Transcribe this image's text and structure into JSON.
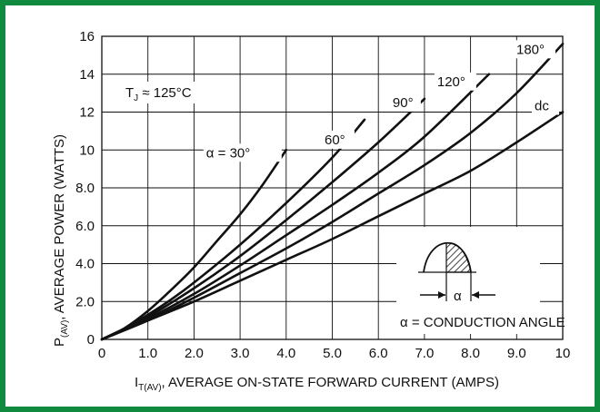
{
  "chart_data": {
    "type": "line",
    "xlabel_main": "I",
    "xlabel_sub": "T(AV)",
    "xlabel_rest": ", AVERAGE ON-STATE FORWARD CURRENT (AMPS)",
    "ylabel_main": "P",
    "ylabel_sub": "(AV)",
    "ylabel_rest": ", AVERAGE POWER (WATTS)",
    "xlim": [
      0,
      10
    ],
    "ylim": [
      0,
      16
    ],
    "x_ticks": [
      "0",
      "1.0",
      "2.0",
      "3.0",
      "4.0",
      "5.0",
      "6.0",
      "7.0",
      "8.0",
      "9.0",
      "10"
    ],
    "y_ticks": [
      "0",
      "2.0",
      "4.0",
      "6.0",
      "8.0",
      "10",
      "12",
      "14",
      "16"
    ],
    "grid": true,
    "temp_main": "T",
    "temp_sub": "J",
    "temp_rest": " ≈ 125°C",
    "inset_alpha": "α",
    "conduction_note": "α = CONDUCTION ANGLE",
    "series": [
      {
        "name": "α = 30°",
        "x": [
          0,
          0.5,
          1.0,
          1.5,
          2.0,
          2.5,
          3.0,
          3.5,
          4.0
        ],
        "y": [
          0,
          0.6,
          1.5,
          2.6,
          3.8,
          5.2,
          6.6,
          8.2,
          10
        ]
      },
      {
        "name": "60°",
        "x": [
          0,
          0.5,
          1.0,
          1.5,
          2.0,
          3.0,
          4.0,
          5.0,
          5.7
        ],
        "y": [
          0,
          0.55,
          1.3,
          2.1,
          3.0,
          5.0,
          7.2,
          9.6,
          11.6
        ]
      },
      {
        "name": "90°",
        "x": [
          0,
          1.0,
          2.0,
          3.0,
          4.0,
          5.0,
          6.0,
          7.0
        ],
        "y": [
          0,
          1.2,
          2.7,
          4.4,
          6.3,
          8.3,
          10.4,
          12.7
        ]
      },
      {
        "name": "120°",
        "x": [
          0,
          1.0,
          2.0,
          3.0,
          4.0,
          5.0,
          6.0,
          7.0,
          8.4
        ],
        "y": [
          0,
          1.1,
          2.4,
          3.9,
          5.5,
          7.1,
          8.8,
          10.7,
          14
        ]
      },
      {
        "name": "180°",
        "x": [
          0,
          1.0,
          2.0,
          3.0,
          4.0,
          5.0,
          6.0,
          7.0,
          8.0,
          9.0,
          10
        ],
        "y": [
          0,
          1.0,
          2.2,
          3.5,
          4.8,
          6.2,
          7.7,
          9.2,
          10.9,
          13.0,
          15.6
        ]
      },
      {
        "name": "dc",
        "x": [
          0,
          1.0,
          2.0,
          3.0,
          4.0,
          5.0,
          6.0,
          7.0,
          8.0,
          9.0,
          10
        ],
        "y": [
          0,
          1.0,
          2.0,
          3.1,
          4.2,
          5.3,
          6.5,
          7.7,
          8.9,
          10.4,
          12
        ]
      }
    ],
    "colors": {
      "frame": "#0f8a3e",
      "line": "#111111"
    }
  }
}
